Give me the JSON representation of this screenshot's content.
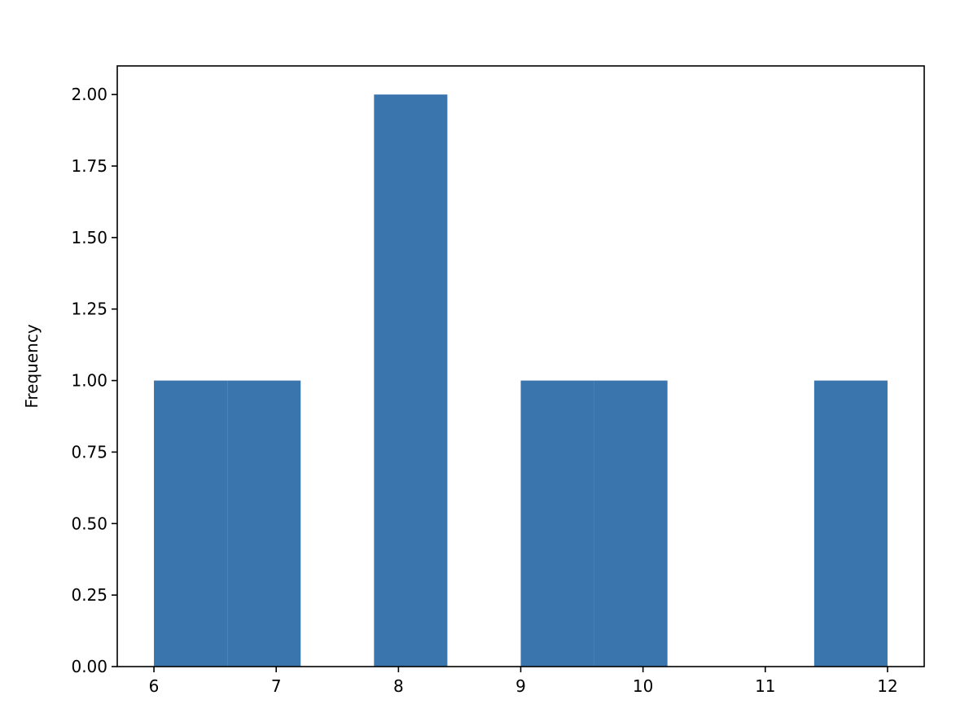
{
  "chart_data": {
    "type": "bar",
    "subtype": "histogram",
    "title": "",
    "xlabel": "",
    "ylabel": "Frequency",
    "bin_edges": [
      6.0,
      6.6,
      7.2,
      7.8,
      8.4,
      9.0,
      9.6,
      10.2,
      10.8,
      11.4,
      12.0
    ],
    "values": [
      1,
      1,
      0,
      2,
      0,
      1,
      1,
      0,
      0,
      1
    ],
    "xlim": [
      5.7,
      12.3
    ],
    "ylim": [
      0,
      2.1
    ],
    "x_ticks": [
      6,
      7,
      8,
      9,
      10,
      11,
      12
    ],
    "x_tick_labels": [
      "6",
      "7",
      "8",
      "9",
      "10",
      "11",
      "12"
    ],
    "y_ticks": [
      0,
      0.25,
      0.5,
      0.75,
      1.0,
      1.25,
      1.5,
      1.75,
      2.0
    ],
    "y_tick_labels": [
      "0.00",
      "0.25",
      "0.50",
      "0.75",
      "1.00",
      "1.25",
      "1.50",
      "1.75",
      "2.00"
    ],
    "grid": false,
    "bar_color": "#3a75ae"
  }
}
